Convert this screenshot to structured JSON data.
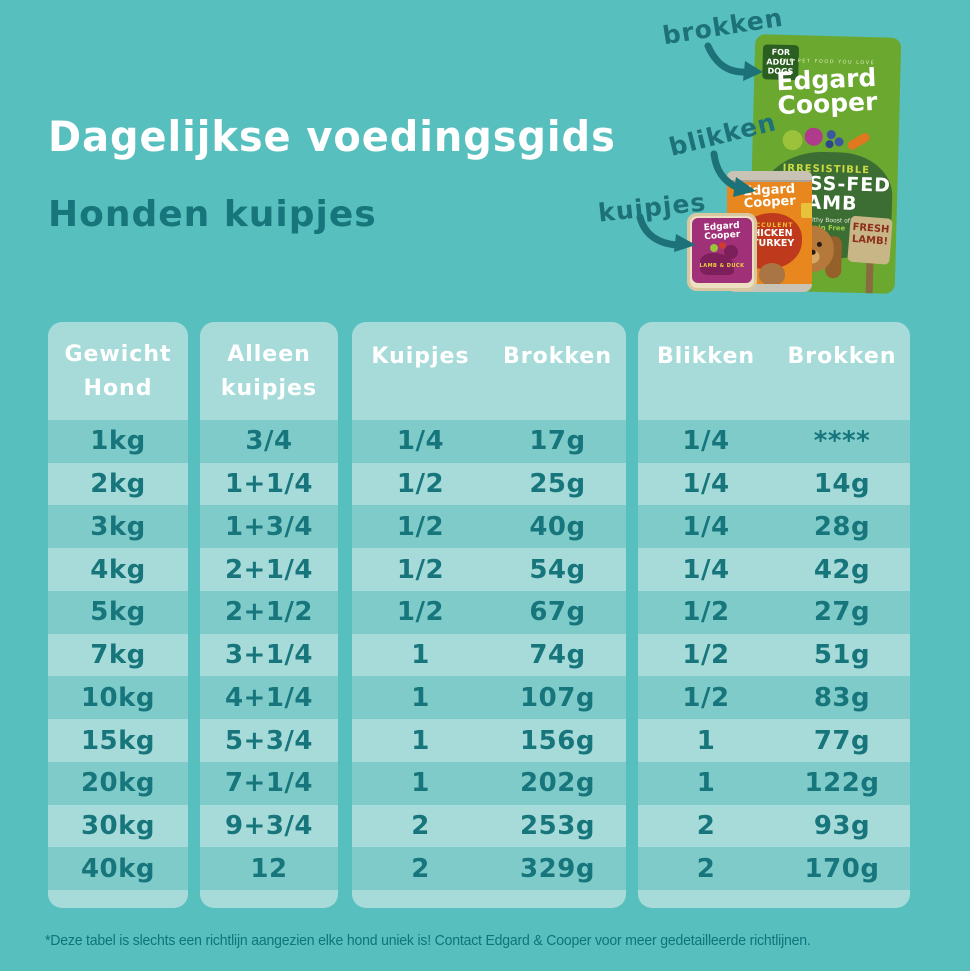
{
  "header": {
    "title": "Dagelijkse voedingsgids",
    "subtitle": "Honden kuipjes"
  },
  "callouts": [
    {
      "label": "brokken"
    },
    {
      "label": "blikken"
    },
    {
      "label": "kuipjes"
    }
  ],
  "products": {
    "bag": {
      "badge": "FOR\nADULT\nDOGS",
      "tagline": "THE PET FOOD YOU LOVE",
      "brand": "Edgard\nCooper",
      "claim": "IRRESISTIBLE",
      "flavor": "GRASS-FED\nLAMB",
      "healthy": "Healthy Boost of",
      "grain_free": "Grain Free",
      "sign": "FRESH\nLAMB!"
    },
    "can": {
      "brand": "Edgard\nCooper",
      "claim": "SUCCULENT",
      "flavor": "CHICKEN\n&TURKEY"
    },
    "tub": {
      "brand": "Edgard\nCooper",
      "flavor": "LAMB & DUCK"
    }
  },
  "table": {
    "panels": [
      {
        "header_layout": "stack",
        "header_lines": [
          "Gewicht",
          "Hond"
        ],
        "rows": [
          [
            "1kg"
          ],
          [
            "2kg"
          ],
          [
            "3kg"
          ],
          [
            "4kg"
          ],
          [
            "5kg"
          ],
          [
            "7kg"
          ],
          [
            "10kg"
          ],
          [
            "15kg"
          ],
          [
            "20kg"
          ],
          [
            "30kg"
          ],
          [
            "40kg"
          ]
        ]
      },
      {
        "header_layout": "stack",
        "header_lines": [
          "Alleen",
          "kuipjes"
        ],
        "rows": [
          [
            "3/4"
          ],
          [
            "1+1/4"
          ],
          [
            "1+3/4"
          ],
          [
            "2+1/4"
          ],
          [
            "2+1/2"
          ],
          [
            "3+1/4"
          ],
          [
            "4+1/4"
          ],
          [
            "5+3/4"
          ],
          [
            "7+1/4"
          ],
          [
            "9+3/4"
          ],
          [
            "12"
          ]
        ]
      },
      {
        "header_layout": "split",
        "header_lines": [
          "Kuipjes",
          "Brokken"
        ],
        "rows": [
          [
            "1/4",
            "17g"
          ],
          [
            "1/2",
            "25g"
          ],
          [
            "1/2",
            "40g"
          ],
          [
            "1/2",
            "54g"
          ],
          [
            "1/2",
            "67g"
          ],
          [
            "1",
            "74g"
          ],
          [
            "1",
            "107g"
          ],
          [
            "1",
            "156g"
          ],
          [
            "1",
            "202g"
          ],
          [
            "2",
            "253g"
          ],
          [
            "2",
            "329g"
          ]
        ]
      },
      {
        "header_layout": "split",
        "header_lines": [
          "Blikken",
          "Brokken"
        ],
        "rows": [
          [
            "1/4",
            "****"
          ],
          [
            "1/4",
            "14g"
          ],
          [
            "1/4",
            "28g"
          ],
          [
            "1/4",
            "42g"
          ],
          [
            "1/2",
            "27g"
          ],
          [
            "1/2",
            "51g"
          ],
          [
            "1/2",
            "83g"
          ],
          [
            "1",
            "77g"
          ],
          [
            "1",
            "122g"
          ],
          [
            "2",
            "93g"
          ],
          [
            "2",
            "170g"
          ]
        ]
      }
    ]
  },
  "footnote": "*Deze tabel is slechts een richtlijn aangezien elke hond uniek is! Contact Edgard & Cooper voor meer gedetailleerde richtlijnen.",
  "colors": {
    "background": "#57bfbd",
    "panel": "#a7dbd9",
    "row_stripe": "#7ecbc9",
    "text_dark_teal": "#17757c",
    "title_white": "#ffffff",
    "bag_green": "#6ba82f",
    "can_orange": "#e8871d",
    "tub_purple": "#a03078"
  }
}
